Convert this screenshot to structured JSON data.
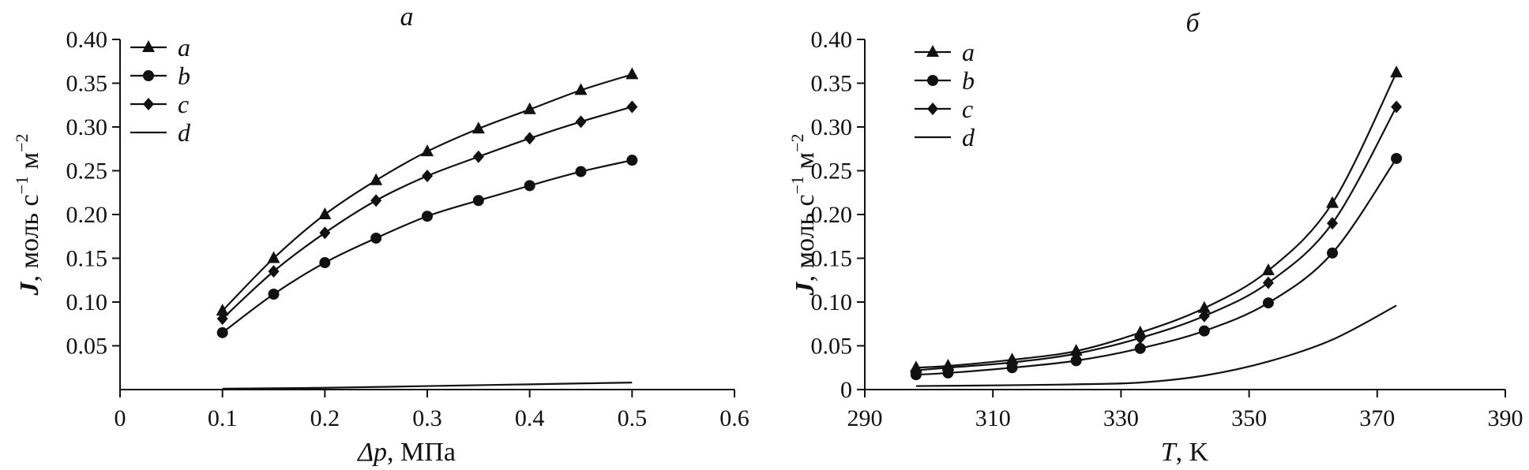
{
  "chart_data": [
    {
      "type": "line",
      "title": "a",
      "xlabel_var": "Δp",
      "xlabel_unit": ", МПа",
      "ylabel_var": "J",
      "ylabel_unit": ", моль с",
      "ylabel_unit_2": " м",
      "ylabel_exp1": "−1",
      "ylabel_exp2": "−2",
      "xlim": [
        0,
        0.6
      ],
      "ylim": [
        0,
        0.4
      ],
      "xticks": [
        "0",
        "0.1",
        "0.2",
        "0.3",
        "0.4",
        "0.5",
        "0.6"
      ],
      "yticks": [
        "0.05",
        "0.10",
        "0.15",
        "0.20",
        "0.25",
        "0.30",
        "0.35",
        "0.40"
      ],
      "legend_position": "top-left",
      "series": [
        {
          "name": "a",
          "marker": "triangle",
          "x": [
            0.1,
            0.15,
            0.2,
            0.25,
            0.3,
            0.35,
            0.4,
            0.45,
            0.5
          ],
          "y": [
            0.09,
            0.15,
            0.2,
            0.239,
            0.272,
            0.298,
            0.32,
            0.342,
            0.36
          ]
        },
        {
          "name": "b",
          "marker": "circle",
          "x": [
            0.1,
            0.15,
            0.2,
            0.25,
            0.3,
            0.35,
            0.4,
            0.45,
            0.5
          ],
          "y": [
            0.065,
            0.109,
            0.145,
            0.173,
            0.198,
            0.216,
            0.233,
            0.249,
            0.262
          ]
        },
        {
          "name": "c",
          "marker": "diamond",
          "x": [
            0.1,
            0.15,
            0.2,
            0.25,
            0.3,
            0.35,
            0.4,
            0.45,
            0.5
          ],
          "y": [
            0.081,
            0.135,
            0.179,
            0.216,
            0.244,
            0.266,
            0.287,
            0.306,
            0.323
          ]
        },
        {
          "name": "d",
          "marker": "none",
          "x": [
            0.1,
            0.2,
            0.3,
            0.4,
            0.5
          ],
          "y": [
            0.001,
            0.002,
            0.004,
            0.006,
            0.008
          ]
        }
      ]
    },
    {
      "type": "line",
      "title": "б",
      "xlabel_var": "T",
      "xlabel_unit": ", K",
      "ylabel_var": "J",
      "ylabel_unit": ", моль с",
      "ylabel_unit_2": " м",
      "ylabel_exp1": "−1",
      "ylabel_exp2": "−2",
      "xlim": [
        290,
        390
      ],
      "ylim": [
        0,
        0.4
      ],
      "xticks": [
        "290",
        "310",
        "330",
        "350",
        "370",
        "390"
      ],
      "yticks": [
        "0",
        "0.05",
        "0.10",
        "0.15",
        "0.20",
        "0.25",
        "0.30",
        "0.35",
        "0.40"
      ],
      "legend_position": "top-left",
      "series": [
        {
          "name": "a",
          "marker": "triangle",
          "x": [
            298,
            303,
            313,
            323,
            333,
            343,
            353,
            363,
            373
          ],
          "y": [
            0.025,
            0.027,
            0.034,
            0.044,
            0.065,
            0.093,
            0.136,
            0.213,
            0.362
          ]
        },
        {
          "name": "b",
          "marker": "circle",
          "x": [
            298,
            303,
            313,
            323,
            333,
            343,
            353,
            363,
            373
          ],
          "y": [
            0.017,
            0.019,
            0.025,
            0.033,
            0.047,
            0.067,
            0.099,
            0.156,
            0.264
          ]
        },
        {
          "name": "c",
          "marker": "diamond",
          "x": [
            298,
            303,
            313,
            323,
            333,
            343,
            353,
            363,
            373
          ],
          "y": [
            0.022,
            0.025,
            0.031,
            0.041,
            0.059,
            0.084,
            0.122,
            0.19,
            0.323
          ]
        },
        {
          "name": "d",
          "marker": "none",
          "x": [
            298,
            313,
            323,
            333,
            343,
            353,
            363,
            373
          ],
          "y": [
            0.004,
            0.005,
            0.006,
            0.008,
            0.016,
            0.032,
            0.057,
            0.096
          ]
        }
      ]
    }
  ]
}
